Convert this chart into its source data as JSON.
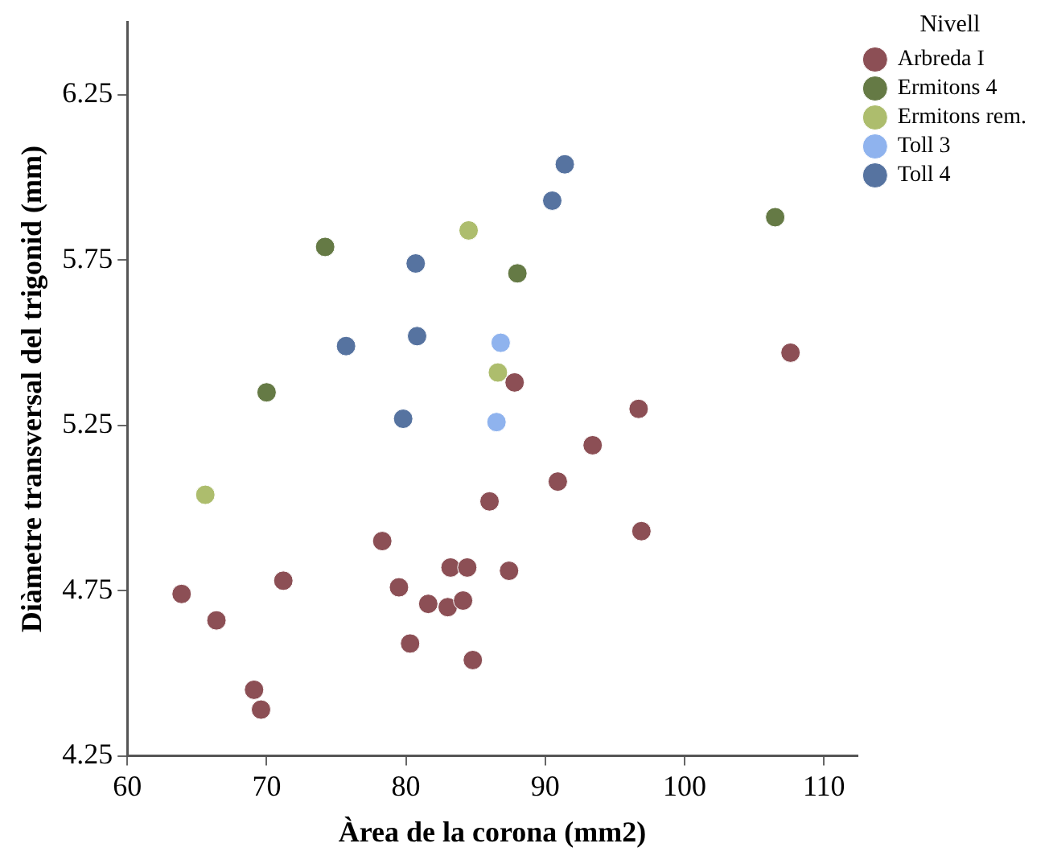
{
  "chart_data": {
    "type": "scatter",
    "xlabel": "Àrea de la corona (mm2)",
    "ylabel": "Diàmetre transversal del trigonid (mm)",
    "legend_title": "Nivell",
    "legend": "right",
    "grid": false,
    "marker": "circle",
    "xlim": [
      60,
      112.4
    ],
    "xticks": [
      60,
      70,
      80,
      90,
      100,
      110
    ],
    "ylim": [
      4.25,
      6.47
    ],
    "yticks": [
      4.25,
      4.75,
      5.25,
      5.75,
      6.25
    ],
    "series": [
      {
        "name": "Arbreda I",
        "color": "#8c4f55",
        "x": [
          63.9,
          66.4,
          71.2,
          69.1,
          69.6,
          78.3,
          79.5,
          80.3,
          81.6,
          83.0,
          83.2,
          84.4,
          84.1,
          84.8,
          86.0,
          87.4,
          90.9,
          96.9,
          87.8,
          96.7,
          93.4,
          107.6
        ],
        "values": [
          4.74,
          4.66,
          4.78,
          4.45,
          4.39,
          4.9,
          4.76,
          4.59,
          4.71,
          4.7,
          4.82,
          4.82,
          4.72,
          4.54,
          5.02,
          4.81,
          5.08,
          4.93,
          5.38,
          5.3,
          5.19,
          5.47
        ]
      },
      {
        "name": "Ermitons 4",
        "color": "#657a45",
        "x": [
          74.2,
          70.0,
          88.0,
          106.5
        ],
        "values": [
          5.79,
          5.35,
          5.71,
          5.88
        ]
      },
      {
        "name": "Ermitons rem.",
        "color": "#adbd6d",
        "x": [
          84.5,
          65.6,
          86.6
        ],
        "values": [
          5.84,
          5.04,
          5.41
        ]
      },
      {
        "name": "Toll 3",
        "color": "#8fb3ee",
        "x": [
          86.8,
          86.5
        ],
        "values": [
          5.5,
          5.26
        ]
      },
      {
        "name": "Toll 4",
        "color": "#5673a0",
        "x": [
          80.7,
          75.7,
          80.8,
          79.8,
          91.4,
          90.5
        ],
        "values": [
          5.74,
          5.49,
          5.52,
          5.27,
          6.04,
          5.93
        ]
      }
    ]
  }
}
